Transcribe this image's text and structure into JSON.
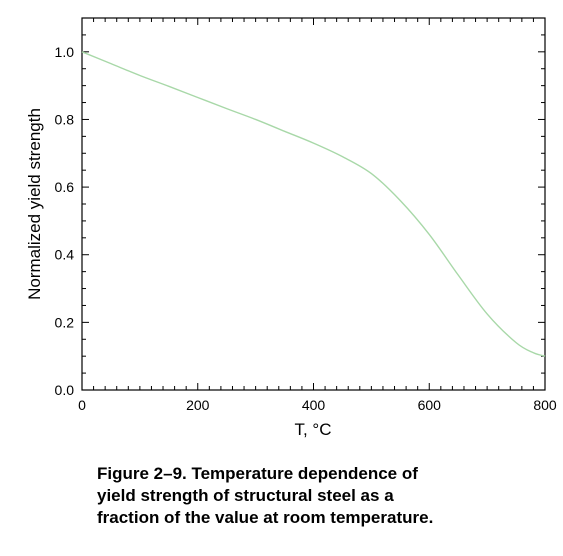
{
  "chart_data": {
    "type": "line",
    "xlabel": "T, °C",
    "ylabel": "Normalized yield strength",
    "xlim": [
      0,
      800
    ],
    "ylim": [
      0.0,
      1.1
    ],
    "xticks": [
      "0",
      "200",
      "400",
      "600",
      "800"
    ],
    "yticks": [
      "0.0",
      "0.2",
      "0.4",
      "0.6",
      "0.8",
      "1.0"
    ],
    "grid": false,
    "series": [
      {
        "color": "#a8d8a8",
        "x": [
          0,
          50,
          100,
          150,
          200,
          250,
          300,
          350,
          400,
          450,
          500,
          550,
          600,
          650,
          700,
          750,
          780,
          800
        ],
        "y": [
          1.0,
          0.965,
          0.93,
          0.898,
          0.865,
          0.832,
          0.8,
          0.765,
          0.73,
          0.69,
          0.64,
          0.56,
          0.46,
          0.34,
          0.225,
          0.14,
          0.11,
          0.1
        ]
      }
    ]
  },
  "caption": {
    "lines": [
      "Figure 2–9.  Temperature dependence of",
      "yield strength of structural steel as a",
      "fraction of the value at room temperature."
    ]
  }
}
